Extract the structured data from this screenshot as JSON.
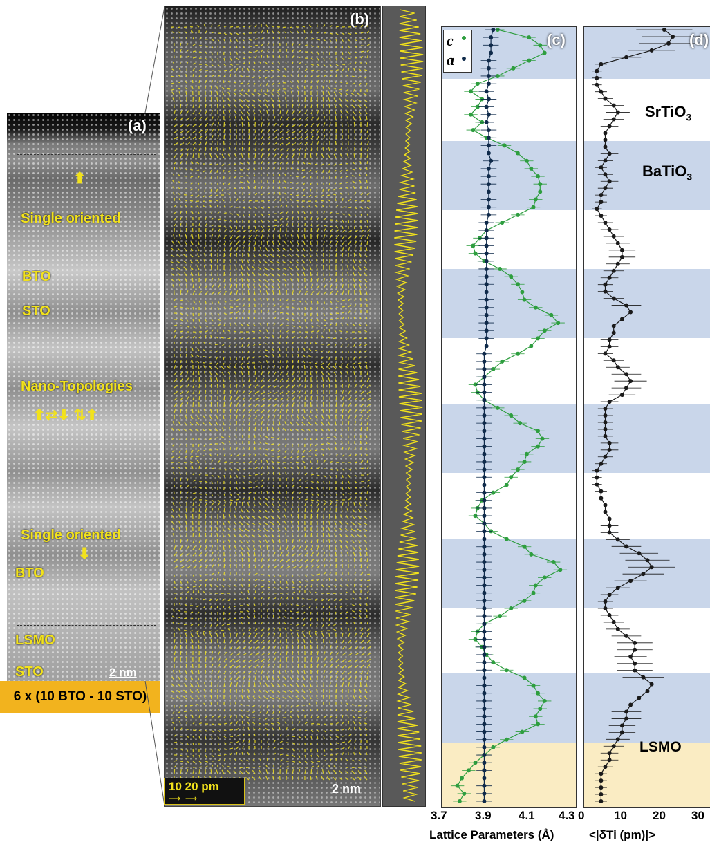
{
  "colors": {
    "band_blue": "#c9d6ea",
    "band_lsmo": "#faecc3",
    "c_series": "#2e9e3f",
    "a_series": "#0f2a4a",
    "d_series": "#1a1a1a",
    "label_yellow": "#f2e21c",
    "banner": "#f2b31e"
  },
  "panel_a": {
    "tag": "(a)",
    "labels": {
      "single_top": "Single oriented",
      "bto_1": "BTO",
      "sto_1": "STO",
      "nano": "Nano-Topologies",
      "single_bottom": "Single oriented",
      "bto_2": "BTO",
      "lsmo": "LSMO",
      "sto_2": "STO"
    },
    "scalebar": "2 nm",
    "banner": "6 x (10 BTO - 10 STO)"
  },
  "panel_b": {
    "tag": "(b)",
    "scale_pm": "10 20 pm",
    "scalebar": "2 nm"
  },
  "panel_c": {
    "tag": "(c)",
    "legend_c": "c",
    "legend_a": "a"
  },
  "panel_d": {
    "tag": "(d)",
    "label_srtio3": "SrTiO",
    "label_batio3": "BaTiO",
    "sub3": "3",
    "label_lsmo": "LSMO"
  },
  "chart_data": [
    {
      "type": "line",
      "panel": "c",
      "xlabel": "Lattice Parameters (Å)",
      "xlim": [
        3.7,
        4.3
      ],
      "xticks": [
        "3.7",
        "3.9",
        "4.1",
        "4.3"
      ],
      "y_index": "unit-cell row (top to bottom)",
      "grid": false,
      "legend": "top-left",
      "series": [
        {
          "name": "c",
          "values": [
            3.95,
            4.09,
            4.14,
            4.16,
            4.09,
            4.02,
            3.95,
            3.86,
            3.83,
            3.88,
            3.86,
            3.83,
            3.88,
            3.84,
            3.9,
            3.98,
            4.04,
            4.08,
            4.1,
            4.13,
            4.14,
            4.14,
            4.12,
            4.11,
            4.04,
            3.97,
            3.9,
            3.87,
            3.84,
            3.85,
            3.89,
            3.96,
            4.01,
            4.04,
            4.06,
            4.07,
            4.12,
            4.19,
            4.22,
            4.16,
            4.13,
            4.1,
            4.04,
            3.97,
            3.93,
            3.89,
            3.85,
            3.86,
            3.89,
            3.95,
            4.01,
            4.05,
            4.13,
            4.15,
            4.13,
            4.08,
            4.07,
            4.04,
            4.01,
            3.99,
            3.93,
            3.88,
            3.86,
            3.85,
            3.89,
            3.92,
            3.99,
            4.07,
            4.1,
            4.2,
            4.23,
            4.16,
            4.12,
            4.11,
            4.07,
            4.01,
            3.96,
            3.89,
            3.86,
            3.85,
            3.88,
            3.9,
            3.93,
            3.99,
            4.07,
            4.11,
            4.13,
            4.16,
            4.14,
            4.12,
            4.13,
            4.06,
            3.99,
            3.93,
            3.89,
            3.85,
            3.82,
            3.79,
            3.77,
            3.8,
            3.78
          ]
        },
        {
          "name": "a",
          "values": [
            3.93,
            3.92,
            3.92,
            3.92,
            3.91,
            3.91,
            3.91,
            3.91,
            3.9,
            3.91,
            3.9,
            3.91,
            3.9,
            3.91,
            3.91,
            3.91,
            3.91,
            3.92,
            3.91,
            3.91,
            3.91,
            3.91,
            3.91,
            3.91,
            3.91,
            3.9,
            3.9,
            3.9,
            3.9,
            3.9,
            3.9,
            3.9,
            3.9,
            3.9,
            3.9,
            3.9,
            3.9,
            3.9,
            3.9,
            3.9,
            3.9,
            3.9,
            3.89,
            3.89,
            3.89,
            3.89,
            3.89,
            3.89,
            3.89,
            3.89,
            3.89,
            3.89,
            3.89,
            3.89,
            3.89,
            3.89,
            3.89,
            3.89,
            3.89,
            3.89,
            3.89,
            3.89,
            3.89,
            3.89,
            3.89,
            3.89,
            3.89,
            3.89,
            3.89,
            3.89,
            3.89,
            3.89,
            3.89,
            3.89,
            3.89,
            3.89,
            3.89,
            3.89,
            3.89,
            3.89,
            3.89,
            3.89,
            3.89,
            3.89,
            3.89,
            3.89,
            3.89,
            3.89,
            3.89,
            3.89,
            3.89,
            3.89,
            3.89,
            3.89,
            3.89,
            3.89,
            3.89,
            3.89,
            3.89,
            3.89,
            3.89
          ]
        }
      ]
    },
    {
      "type": "line",
      "panel": "d",
      "xlabel": "<|δTi (pm)|>",
      "xlim": [
        0,
        30
      ],
      "xticks": [
        "0",
        "10",
        "20",
        "30"
      ],
      "y_index": "unit-cell row (top to bottom)",
      "grid": false,
      "series": [
        {
          "name": "<|δTi|>",
          "values": [
            19,
            21,
            20,
            16,
            10,
            4,
            3,
            3,
            3,
            4,
            5,
            7,
            8,
            7,
            6,
            5,
            5,
            5,
            6,
            5,
            4,
            5,
            6,
            5,
            4,
            4,
            3,
            4,
            5,
            6,
            7,
            8,
            9,
            9,
            8,
            7,
            6,
            5,
            5,
            7,
            10,
            11,
            9,
            7,
            7,
            6,
            6,
            5,
            7,
            8,
            10,
            11,
            10,
            9,
            6,
            5,
            5,
            5,
            5,
            5,
            6,
            6,
            5,
            4,
            3,
            3,
            3,
            4,
            4,
            5,
            5,
            6,
            6,
            6,
            8,
            10,
            13,
            15,
            16,
            14,
            11,
            8,
            6,
            5,
            5,
            6,
            7,
            8,
            10,
            12,
            12,
            11,
            12,
            12,
            14,
            16,
            15,
            13,
            11,
            10,
            10,
            9,
            9,
            8,
            7,
            6,
            6,
            5,
            4,
            4,
            4,
            4,
            4
          ]
        }
      ]
    }
  ]
}
